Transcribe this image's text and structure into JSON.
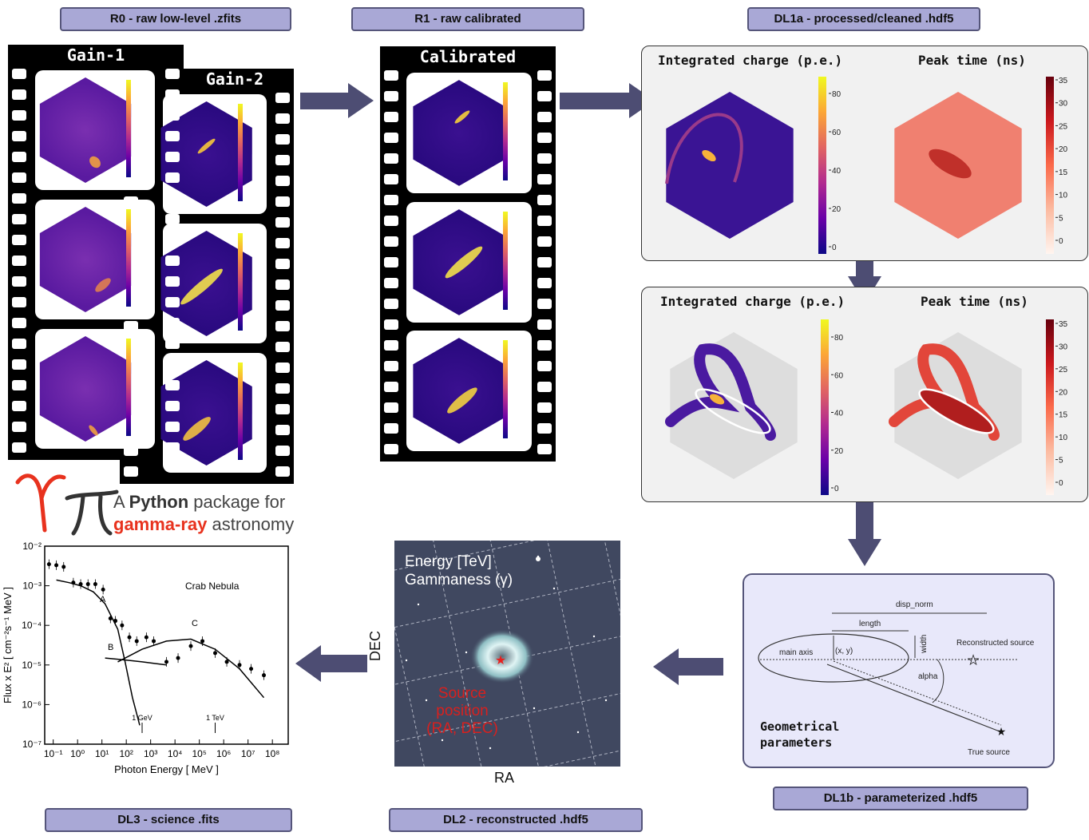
{
  "stages": {
    "r0": "R0 - raw low-level .zfits",
    "r1": "R1 - raw calibrated",
    "dl1a": "DL1a - processed/cleaned .hdf5",
    "dl1b": "DL1b - parameterized .hdf5",
    "dl2": "DL2 - reconstructed .hdf5",
    "dl3": "DL3 - science .fits"
  },
  "films": {
    "gain1": "Gain-1",
    "gain2": "Gain-2",
    "calibrated": "Calibrated"
  },
  "panels": {
    "integrated_charge": "Integrated charge (p.e.)",
    "peak_time": "Peak time (ns)",
    "charge_ticks": [
      "80",
      "60",
      "40",
      "20",
      "0"
    ],
    "time_ticks": [
      "35",
      "30",
      "25",
      "20",
      "15",
      "10",
      "5",
      "0"
    ]
  },
  "logo": {
    "symbols": "γπ",
    "line1_a": "A ",
    "line1_b": "Python",
    "line1_c": " package for",
    "line2_a": "gamma-ray",
    "line2_b": " astronomy",
    "colors": {
      "red": "#e8321e",
      "dark": "#333333"
    }
  },
  "geometry": {
    "disp_norm": "disp_norm",
    "length": "length",
    "width": "width",
    "main_axis": "main axis",
    "xy": "(x, y)",
    "reco_source": "Reconstructed source",
    "alpha": "alpha",
    "true_source": "True source",
    "title_line1": "Geometrical",
    "title_line2": "parameters"
  },
  "sky": {
    "line1": "Energy [TeV]",
    "line2": "Gammaness (γ)",
    "source_line1": "Source",
    "source_line2": "position",
    "source_line3": "(RA, DEC)",
    "xlabel": "RA",
    "ylabel": "DEC"
  },
  "chart_data": {
    "type": "scatter",
    "title": "",
    "annotation": "Crab Nebula",
    "xlabel": "Photon Energy [ MeV ]",
    "ylabel": "Flux x E² [ cm⁻²s⁻¹ MeV ]",
    "xscale": "log",
    "yscale": "log",
    "xlim": [
      0.1,
      1000000000
    ],
    "ylim": [
      1e-07,
      0.01
    ],
    "x_ticks": [
      "10⁻¹",
      "10⁰",
      "10¹",
      "10²",
      "10³",
      "10⁴",
      "10⁵",
      "10⁶",
      "10⁷",
      "10⁸"
    ],
    "y_ticks": [
      "10⁻²",
      "10⁻³",
      "10⁻⁴",
      "10⁻⁵",
      "10⁻⁶",
      "10⁻⁷"
    ],
    "curve_labels": [
      "A",
      "B",
      "C"
    ],
    "marker_labels": [
      "1 GeV",
      "1 TeV"
    ],
    "marker_x": [
      1000,
      1000000
    ],
    "curves": [
      {
        "label": "A",
        "x": [
          0.3,
          1,
          3,
          10,
          30,
          100,
          200,
          400,
          800
        ],
        "y": [
          0.0014,
          0.0012,
          0.001,
          0.0007,
          0.00035,
          8e-05,
          1.2e-05,
          1.5e-06,
          3e-07
        ]
      },
      {
        "label": "B",
        "x": [
          30,
          100,
          300,
          1000,
          3000,
          10000
        ],
        "y": [
          1.5e-05,
          1.4e-05,
          1.3e-05,
          1.2e-05,
          1.1e-05,
          1e-05
        ]
      },
      {
        "label": "C",
        "x": [
          100,
          1000,
          10000,
          100000,
          1000000,
          10000000,
          100000000
        ],
        "y": [
          1.2e-05,
          2.5e-05,
          4e-05,
          4.5e-05,
          2.5e-05,
          8e-06,
          1.5e-06
        ]
      }
    ],
    "points": {
      "x": [
        0.15,
        0.3,
        0.6,
        1.5,
        3,
        6,
        12,
        25,
        50,
        80,
        150,
        300,
        600,
        1500,
        3000,
        10000,
        30000,
        100000,
        300000,
        1000000,
        3000000,
        10000000,
        30000000,
        100000000
      ],
      "y": [
        0.0035,
        0.0033,
        0.003,
        0.0012,
        0.0011,
        0.0011,
        0.0011,
        0.0008,
        0.00015,
        0.00013,
        0.0001,
        5e-05,
        4e-05,
        5e-05,
        4e-05,
        1.2e-05,
        1.5e-05,
        3e-05,
        4e-05,
        2e-05,
        1.2e-05,
        1e-05,
        8e-06,
        5.5e-06
      ]
    }
  }
}
